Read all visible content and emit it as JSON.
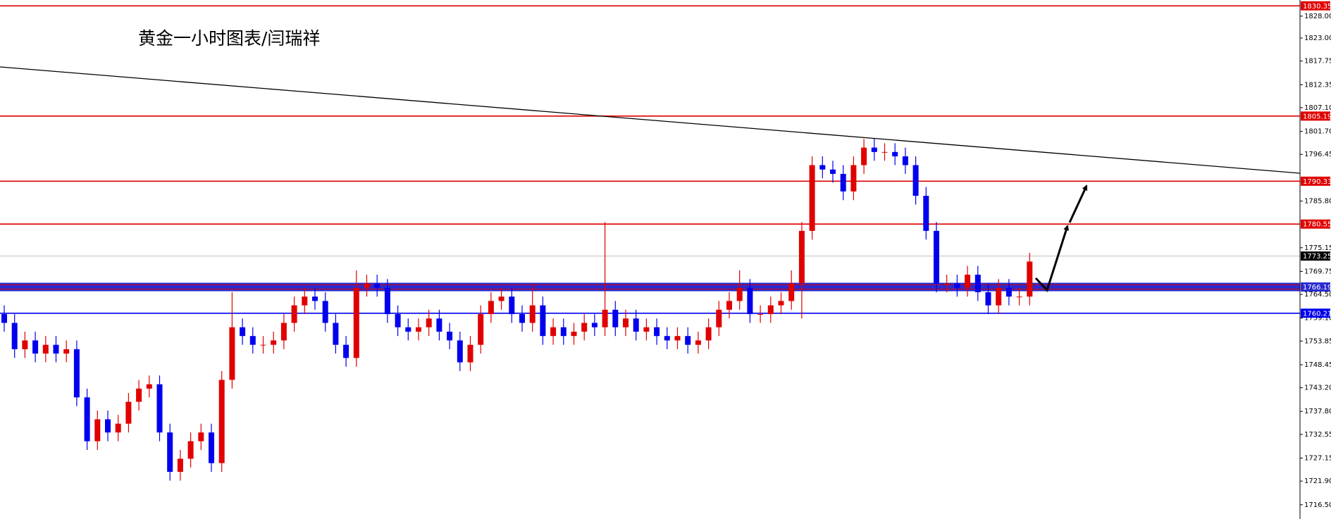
{
  "chart_data": {
    "type": "candlestick",
    "title": "黄金一小时图表/闫瑞祥",
    "up_color": "#e00000",
    "down_color": "#0000ee",
    "ylim": [
      1713.25,
      1831.68
    ],
    "yticks": [
      {
        "value": 1828.0,
        "label": "1828.00"
      },
      {
        "value": 1823.0,
        "label": "1823.00"
      },
      1817.75,
      1812.35,
      {
        "value": 1807.1,
        "label": "1807.10"
      },
      {
        "value": 1801.7,
        "label": "1801.70"
      },
      1796.45,
      {
        "value": 1785.8,
        "label": "1785.80"
      },
      1775.15,
      1769.75,
      {
        "value": 1764.5,
        "label": "1764.50"
      },
      {
        "value": 1759.1,
        "label": "1759.10"
      },
      1753.85,
      1748.45,
      {
        "value": 1743.2,
        "label": "1743.20"
      },
      {
        "value": 1737.8,
        "label": "1737.80"
      },
      1732.55,
      1727.15,
      {
        "value": 1721.9,
        "label": "1721.90"
      },
      {
        "value": 1716.5,
        "label": "1716.50"
      }
    ],
    "levels": [
      {
        "value": 1830.35,
        "color": "#e00000"
      },
      {
        "value": 1805.19,
        "color": "#e00000"
      },
      {
        "value": 1790.33,
        "color": "#e00000"
      },
      {
        "value": 1780.55,
        "color": "#e00000"
      },
      {
        "value": 1773.25,
        "color": "#c0c0c0"
      },
      {
        "value": 1766.19,
        "color": "#2a2ad0",
        "band": true
      },
      {
        "value": 1760.21,
        "color": "#0000ee"
      }
    ],
    "open": [
      1760,
      1758,
      1752,
      1754,
      1751,
      1753,
      1751,
      1752,
      1741,
      1731,
      1736,
      1733,
      1735,
      1740,
      1743,
      1744,
      1733,
      1724,
      1727,
      1731,
      1733,
      1726,
      1745,
      1757,
      1755,
      1753,
      1753,
      1754,
      1758,
      1762,
      1764,
      1763,
      1758,
      1753,
      1750,
      1766,
      1767,
      1766,
      1760,
      1757,
      1756,
      1757,
      1759,
      1756,
      1754,
      1749,
      1753,
      1760,
      1763,
      1764,
      1760,
      1758,
      1762,
      1755,
      1757,
      1755,
      1756,
      1758,
      1757,
      1761,
      1757,
      1759,
      1756,
      1757,
      1755,
      1754,
      1755,
      1753,
      1754,
      1757,
      1761,
      1763,
      1766,
      1760,
      1760,
      1762,
      1763,
      1767,
      1779,
      1794,
      1793,
      1792,
      1788,
      1794,
      1798,
      1797,
      1797,
      1796,
      1794,
      1787,
      1779,
      1767,
      1767,
      1766,
      1769,
      1765,
      1762,
      1766,
      1764,
      1764
    ],
    "high": [
      1762,
      1760,
      1756,
      1756,
      1755,
      1755,
      1754,
      1754,
      1743,
      1738,
      1738,
      1737,
      1742,
      1745,
      1746,
      1746,
      1735,
      1729,
      1733,
      1735,
      1735,
      1747,
      1765,
      1759,
      1757,
      1755,
      1756,
      1760,
      1764,
      1766,
      1766,
      1765,
      1760,
      1755,
      1770,
      1769,
      1769,
      1768,
      1762,
      1759,
      1759,
      1761,
      1761,
      1758,
      1756,
      1755,
      1762,
      1765,
      1766,
      1766,
      1762,
      1767,
      1764,
      1759,
      1759,
      1758,
      1760,
      1760,
      1781,
      1763,
      1761,
      1761,
      1759,
      1759,
      1757,
      1757,
      1757,
      1756,
      1759,
      1763,
      1765,
      1770,
      1768,
      1762,
      1764,
      1765,
      1770,
      1781,
      1796,
      1796,
      1795,
      1794,
      1796,
      1800,
      1800,
      1799,
      1799,
      1798,
      1796,
      1789,
      1781,
      1769,
      1769,
      1771,
      1771,
      1767,
      1768,
      1768,
      1766,
      1774
    ],
    "low": [
      1756,
      1750,
      1750,
      1749,
      1749,
      1749,
      1749,
      1739,
      1729,
      1729,
      1731,
      1731,
      1733,
      1738,
      1741,
      1731,
      1722,
      1722,
      1725,
      1729,
      1724,
      1724,
      1743,
      1753,
      1751,
      1751,
      1751,
      1752,
      1756,
      1760,
      1761,
      1756,
      1751,
      1748,
      1748,
      1764,
      1764,
      1758,
      1755,
      1754,
      1754,
      1755,
      1754,
      1752,
      1747,
      1747,
      1751,
      1758,
      1761,
      1758,
      1756,
      1756,
      1753,
      1753,
      1753,
      1753,
      1754,
      1755,
      1755,
      1755,
      1755,
      1754,
      1754,
      1753,
      1752,
      1752,
      1751,
      1751,
      1752,
      1755,
      1759,
      1761,
      1758,
      1758,
      1758,
      1760,
      1761,
      1759,
      1777,
      1791,
      1790,
      1786,
      1786,
      1792,
      1795,
      1795,
      1794,
      1792,
      1785,
      1777,
      1765,
      1765,
      1764,
      1764,
      1763,
      1760,
      1760,
      1762,
      1762,
      1762
    ],
    "close": [
      1758,
      1752,
      1754,
      1751,
      1753,
      1751,
      1752,
      1741,
      1731,
      1736,
      1733,
      1735,
      1740,
      1743,
      1744,
      1733,
      1724,
      1727,
      1731,
      1733,
      1726,
      1745,
      1757,
      1755,
      1753,
      1753,
      1754,
      1758,
      1762,
      1764,
      1763,
      1758,
      1753,
      1750,
      1766,
      1767,
      1766,
      1760,
      1757,
      1756,
      1757,
      1759,
      1756,
      1754,
      1749,
      1753,
      1760,
      1763,
      1764,
      1760,
      1758,
      1762,
      1755,
      1757,
      1755,
      1756,
      1758,
      1757,
      1761,
      1757,
      1759,
      1756,
      1757,
      1755,
      1754,
      1755,
      1753,
      1754,
      1757,
      1761,
      1763,
      1766,
      1760,
      1760,
      1762,
      1763,
      1767,
      1779,
      1794,
      1793,
      1792,
      1788,
      1794,
      1798,
      1797,
      1797,
      1796,
      1794,
      1787,
      1779,
      1767,
      1767,
      1766,
      1769,
      1765,
      1762,
      1766,
      1764,
      1764,
      1772
    ]
  }
}
